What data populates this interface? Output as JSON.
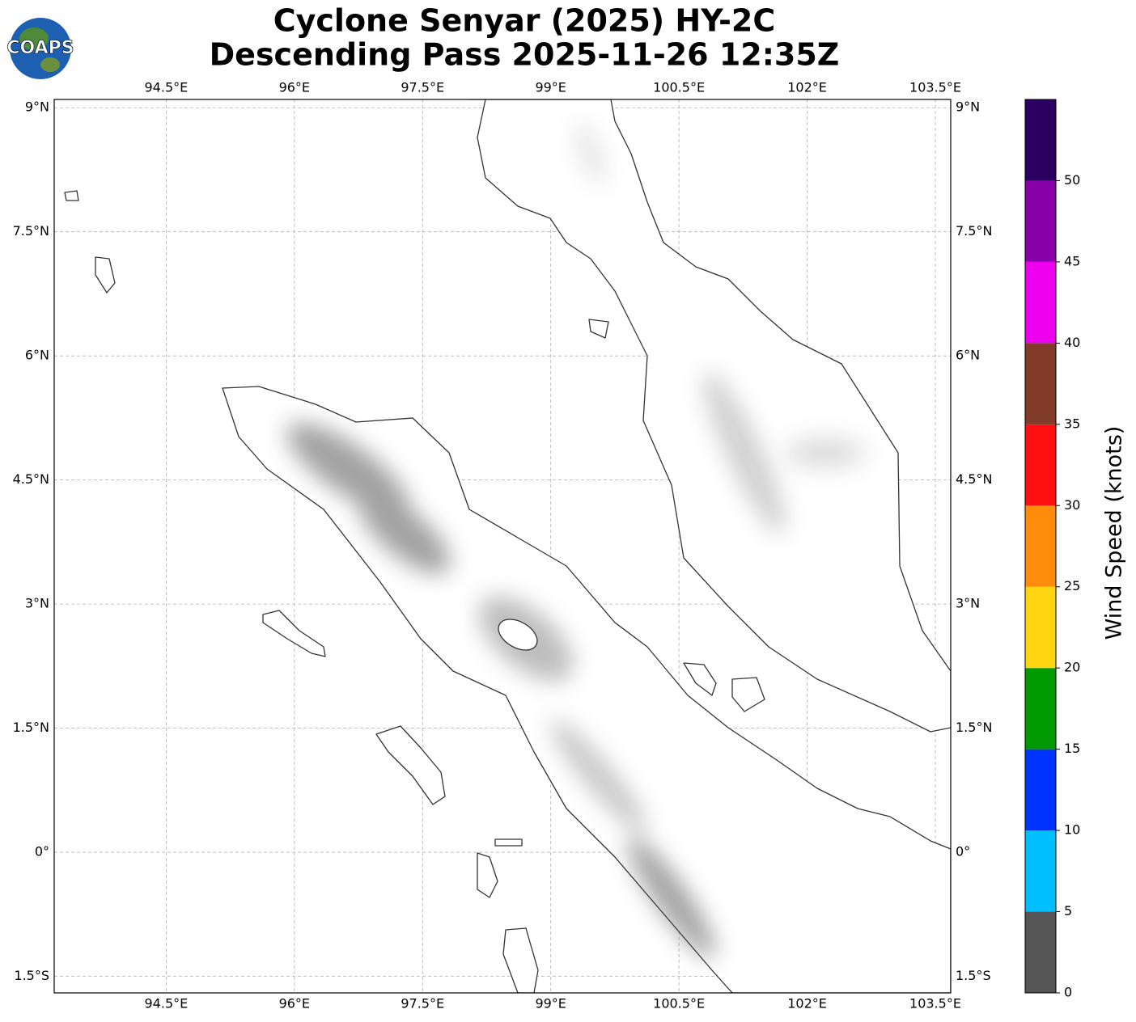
{
  "title": [
    "Cyclone Senyar (2025) HY-2C",
    "Descending Pass 2025-11-26 12:35Z"
  ],
  "logo": "COAPS",
  "map": {
    "xlim": [
      93.19,
      103.68
    ],
    "ylim": [
      -1.7,
      9.1
    ],
    "grid": true,
    "xticks": [
      {
        "value": 94.5,
        "label": "94.5°E"
      },
      {
        "value": 96,
        "label": "96°E"
      },
      {
        "value": 97.5,
        "label": "97.5°E"
      },
      {
        "value": 99,
        "label": "99°E"
      },
      {
        "value": 100.5,
        "label": "100.5°E"
      },
      {
        "value": 102,
        "label": "102°E"
      },
      {
        "value": 103.5,
        "label": "103.5°E"
      }
    ],
    "yticks": [
      {
        "value": 9,
        "label": "9°N"
      },
      {
        "value": 7.5,
        "label": "7.5°N"
      },
      {
        "value": 6,
        "label": "6°N"
      },
      {
        "value": 4.5,
        "label": "4.5°N"
      },
      {
        "value": 3,
        "label": "3°N"
      },
      {
        "value": 1.5,
        "label": "1.5°N"
      },
      {
        "value": 0,
        "label": "0°"
      },
      {
        "value": -1.5,
        "label": "1.5°S"
      }
    ]
  },
  "colorbar": {
    "label": "Wind Speed (knots)",
    "bounds": [
      0,
      5,
      10,
      15,
      20,
      25,
      30,
      35,
      40,
      45,
      50,
      55
    ],
    "colors": [
      "#555555",
      "#00bfff",
      "#0033ff",
      "#009900",
      "#ffd511",
      "#ff8c0a",
      "#ff1111",
      "#803c28",
      "#ee00ee",
      "#8800aa",
      "#2b0060"
    ],
    "ticks": [
      0,
      5,
      10,
      15,
      20,
      25,
      30,
      35,
      40,
      45,
      50
    ]
  }
}
